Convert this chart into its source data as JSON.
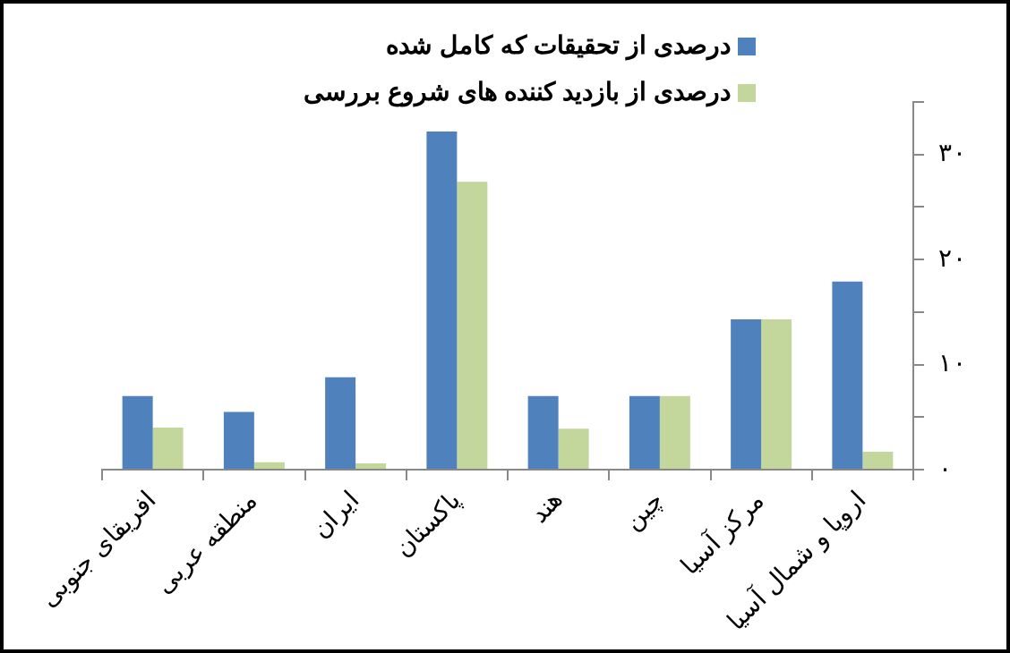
{
  "chart_data": {
    "type": "bar",
    "categories": [
      "افریقای جنوبی",
      "منطقه عربی",
      "ایران",
      "پاکستان",
      "هند",
      "چین",
      "مرکز آسیا",
      "اروپا و شمال آسیا"
    ],
    "series": [
      {
        "name": "درصدی از تحقیقات که کامل شده",
        "color": "#4f81bd",
        "values": [
          7,
          5.5,
          8.8,
          32.2,
          7,
          7,
          14.3,
          17.9
        ]
      },
      {
        "name": "درصدی از بازدید کننده های شروع بررسی",
        "color": "#c3d69b",
        "values": [
          4,
          0.7,
          0.6,
          27.4,
          3.9,
          7,
          14.3,
          1.7
        ]
      }
    ],
    "ylim": [
      0,
      35
    ],
    "yticks": [
      {
        "value": 0,
        "label": "٠"
      },
      {
        "value": 5,
        "label": null
      },
      {
        "value": 10,
        "label": "١٠"
      },
      {
        "value": 15,
        "label": null
      },
      {
        "value": 20,
        "label": "٢٠"
      },
      {
        "value": 25,
        "label": null
      },
      {
        "value": 30,
        "label": "٣٠"
      },
      {
        "value": 35,
        "label": null
      }
    ],
    "grid": false,
    "legend": "top"
  }
}
